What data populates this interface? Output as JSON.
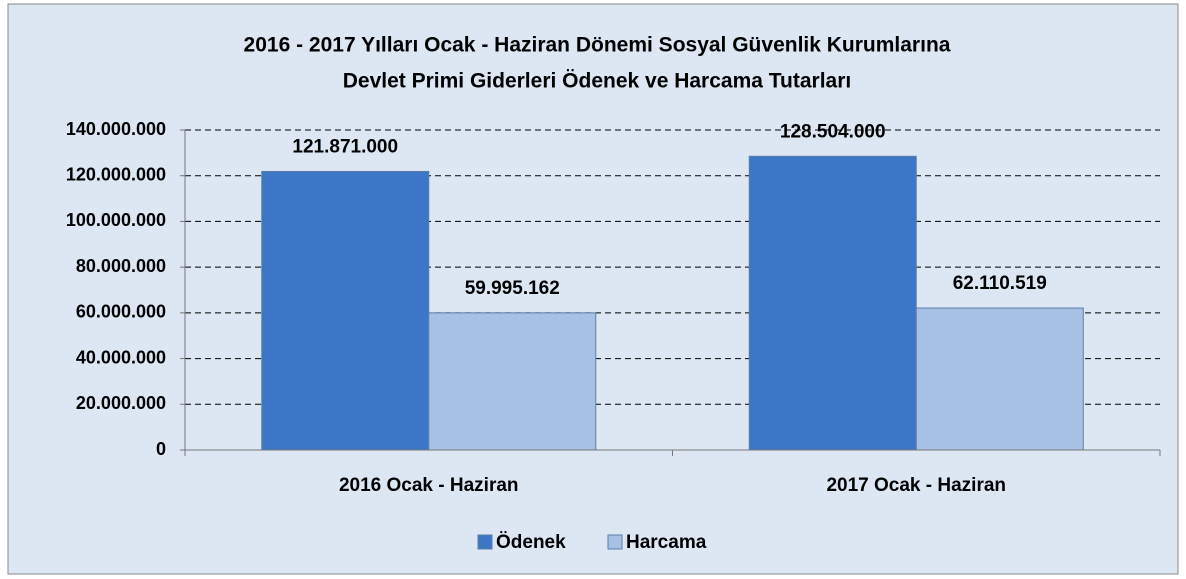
{
  "chart_data": {
    "type": "bar",
    "title": [
      "2016 - 2017 Yılları Ocak - Haziran Dönemi Sosyal Güvenlik Kurumlarına",
      "Devlet Primi Giderleri Ödenek ve Harcama Tutarları"
    ],
    "categories": [
      "2016 Ocak - Haziran",
      "2017 Ocak - Haziran"
    ],
    "series": [
      {
        "name": "Ödenek",
        "color": "#3b77c6",
        "values": [
          121871000,
          128504000
        ],
        "value_labels": [
          "121.871.000",
          "128.504.000"
        ]
      },
      {
        "name": "Harcama",
        "color": "#a7c1e5",
        "values": [
          59995162,
          62110519
        ],
        "value_labels": [
          "59.995.162",
          "62.110.519"
        ]
      }
    ],
    "ylim": [
      0,
      140000000
    ],
    "yticks": [
      0,
      {
        "value": 20000000,
        "label": "20.000.000"
      },
      {
        "value": 40000000,
        "label": "40.000.000"
      },
      {
        "value": 60000000,
        "label": "60.000.000"
      },
      {
        "value": 80000000,
        "label": "80.000.000"
      },
      {
        "value": 100000000,
        "label": "100.000.000"
      },
      {
        "value": 120000000,
        "label": "120.000.000"
      },
      {
        "value": 140000000,
        "label": "140.000.000"
      }
    ],
    "grid": true,
    "legend": "bottom"
  }
}
